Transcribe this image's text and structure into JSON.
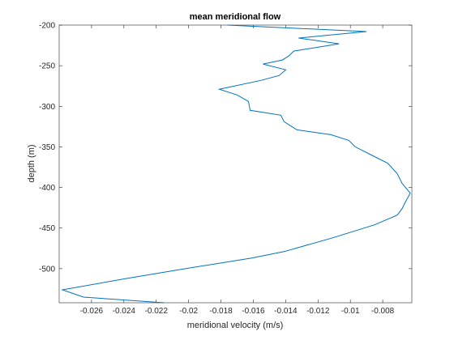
{
  "chart_data": {
    "type": "line",
    "title": "mean meridional flow",
    "xlabel": "meridional velocity (m/s)",
    "ylabel": "depth (m)",
    "xlim": [
      -0.028,
      -0.0062
    ],
    "ylim": [
      -542,
      -200
    ],
    "xticks": [
      -0.026,
      -0.024,
      -0.022,
      -0.02,
      -0.018,
      -0.016,
      -0.014,
      -0.012,
      -0.01,
      -0.008
    ],
    "xtick_labels": [
      "-0.026",
      "-0.024",
      "-0.022",
      "-0.02",
      "-0.018",
      "-0.016",
      "-0.014",
      "-0.012",
      "-0.01",
      "-0.008"
    ],
    "yticks": [
      -200,
      -250,
      -300,
      -350,
      -400,
      -450,
      -500
    ],
    "ytick_labels": [
      "-200",
      "-250",
      "-300",
      "-350",
      "-400",
      "-450",
      "-500"
    ],
    "grid": false,
    "line_color": "#0072BD",
    "series": [
      {
        "x": [
          -0.0176,
          -0.009,
          -0.0132,
          -0.0107,
          -0.0135,
          -0.0138,
          -0.0142,
          -0.0154,
          -0.014,
          -0.0144,
          -0.0155,
          -0.0181,
          -0.017,
          -0.0163,
          -0.0162,
          -0.0143,
          -0.0141,
          -0.0133,
          -0.0112,
          -0.0101,
          -0.0097,
          -0.0087,
          -0.0077,
          -0.0071,
          -0.0068,
          -0.0063,
          -0.0066,
          -0.0068,
          -0.0071,
          -0.0085,
          -0.0111,
          -0.0141,
          -0.0161,
          -0.0202,
          -0.0238,
          -0.0278,
          -0.0265,
          -0.0215
        ],
        "y": [
          -200,
          -208,
          -216,
          -223,
          -232,
          -238,
          -243,
          -248,
          -255,
          -262,
          -268,
          -279,
          -286,
          -294,
          -305,
          -311,
          -319,
          -329,
          -335,
          -342,
          -350,
          -360,
          -370,
          -383,
          -395,
          -407,
          -418,
          -426,
          -434,
          -446,
          -462,
          -479,
          -487,
          -500,
          -512,
          -526,
          -535,
          -542
        ]
      }
    ]
  }
}
